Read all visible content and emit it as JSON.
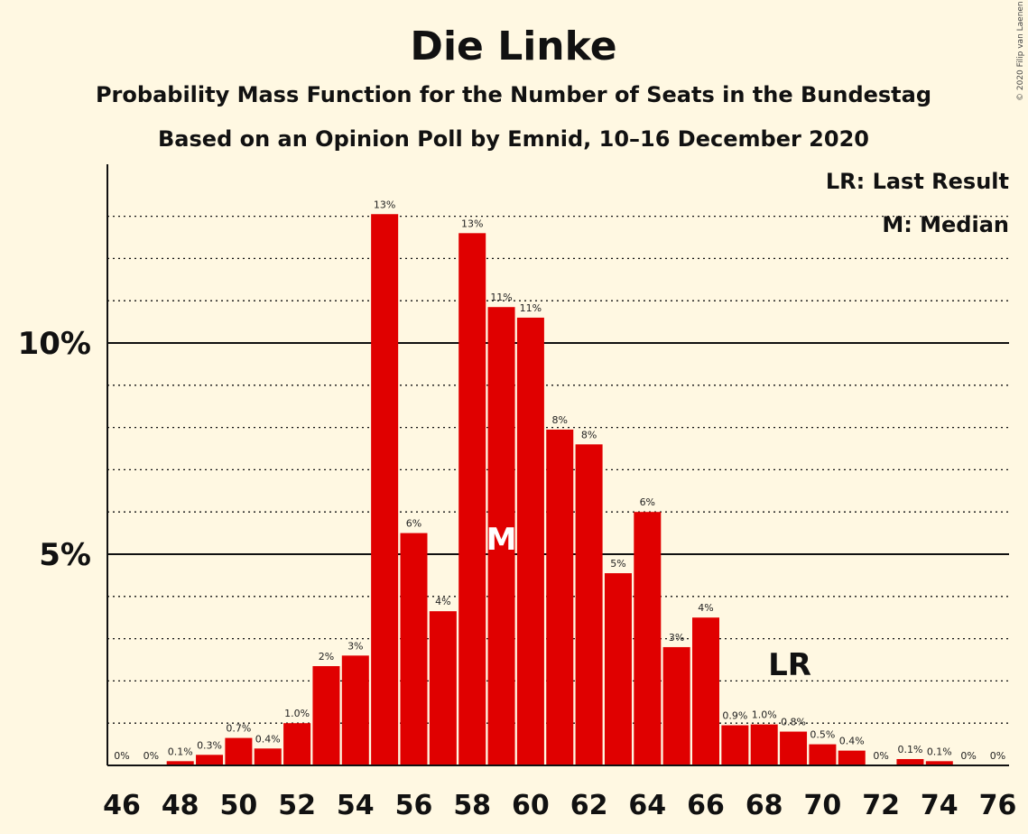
{
  "title": "Die Linke",
  "subtitle1": "Probability Mass Function for the Number of Seats in the Bundestag",
  "subtitle2": "Based on an Opinion Poll by Emnid, 10–16 December 2020",
  "copyright": "© 2020 Filip van Laenen",
  "legend": {
    "lr": "LR: Last Result",
    "m": "M: Median"
  },
  "markers": {
    "median_label": "M",
    "median_seat": 59,
    "lr_label": "LR",
    "lr_seat": 69
  },
  "colors": {
    "bar": "#e00000",
    "background": "#fff8e2"
  },
  "chart_data": {
    "type": "bar",
    "xlabel": "",
    "ylabel": "",
    "ylim": [
      0,
      14.2
    ],
    "y_ticks": [
      {
        "value": 5,
        "label": "5%"
      },
      {
        "value": 10,
        "label": "10%"
      }
    ],
    "x_tick_labels": [
      "46",
      "48",
      "50",
      "52",
      "54",
      "56",
      "58",
      "60",
      "62",
      "64",
      "66",
      "68",
      "70",
      "72",
      "74",
      "76"
    ],
    "categories": [
      46,
      47,
      48,
      49,
      50,
      51,
      52,
      53,
      54,
      55,
      56,
      57,
      58,
      59,
      60,
      61,
      62,
      63,
      64,
      65,
      66,
      67,
      68,
      69,
      70,
      71,
      72,
      73,
      74,
      75,
      76
    ],
    "values": [
      0,
      0,
      0.1,
      0.25,
      0.65,
      0.4,
      1.0,
      2.35,
      2.6,
      13.05,
      5.5,
      3.65,
      12.6,
      10.85,
      10.6,
      7.95,
      7.6,
      4.55,
      6.0,
      2.8,
      3.5,
      0.95,
      0.97,
      0.8,
      0.5,
      0.35,
      0,
      0.15,
      0.1,
      0,
      0
    ],
    "labels": [
      "0%",
      "0%",
      "0.1%",
      "0.3%",
      "0.7%",
      "0.4%",
      "1.0%",
      "2%",
      "3%",
      "13%",
      "6%",
      "4%",
      "13%",
      "11%",
      "11%",
      "8%",
      "8%",
      "5%",
      "6%",
      "3%",
      "4%",
      "0.9%",
      "1.0%",
      "0.8%",
      "0.5%",
      "0.4%",
      "0%",
      "0.1%",
      "0.1%",
      "0%",
      "0%"
    ]
  }
}
